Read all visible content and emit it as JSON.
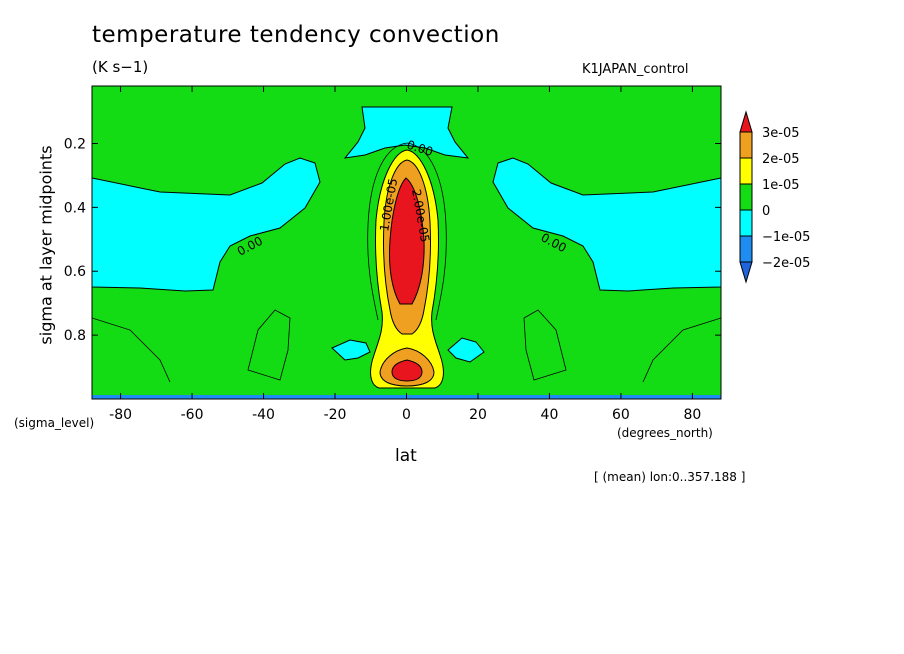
{
  "chart_data": {
    "type": "heatmap",
    "title": "temperature tendency convection",
    "units": "(K s−1)",
    "run_label": "K1JAPAN_control",
    "xlabel": "lat",
    "ylabel": "sigma at layer midpoints",
    "x_unit_label": "(degrees_north)",
    "y_unit_label": "(sigma_level)",
    "footnote": "[ (mean) lon:0..357.188 ]",
    "xlim": [
      -88,
      88
    ],
    "ylim": [
      1.0,
      0.02
    ],
    "x_ticks": [
      -80,
      -60,
      -40,
      -20,
      0,
      20,
      40,
      60,
      80
    ],
    "y_ticks": [
      0.2,
      0.4,
      0.6,
      0.8
    ],
    "contour_labels": [
      "0.00",
      "0.00",
      "0.00",
      "1.00e-05",
      "2.00e-05"
    ],
    "colorbar": {
      "labels": [
        "3e-05",
        "2e-05",
        "1e-05",
        "0",
        "−1e-05",
        "−2e-05"
      ],
      "colors": [
        "#e8141e",
        "#f0a020",
        "#ffff00",
        "#14dc14",
        "#00ffff",
        "#1e8cf0",
        "#1e64dc"
      ]
    },
    "fill_colors": {
      "zero_to_1e-05": "#14dc14",
      "neg_1e-05_to_0": "#00ffff",
      "1e-05_to_2e-05": "#ffff00",
      "2e-05_to_3e-05": "#f0a020",
      "above_3e-05": "#e8141e"
    }
  }
}
